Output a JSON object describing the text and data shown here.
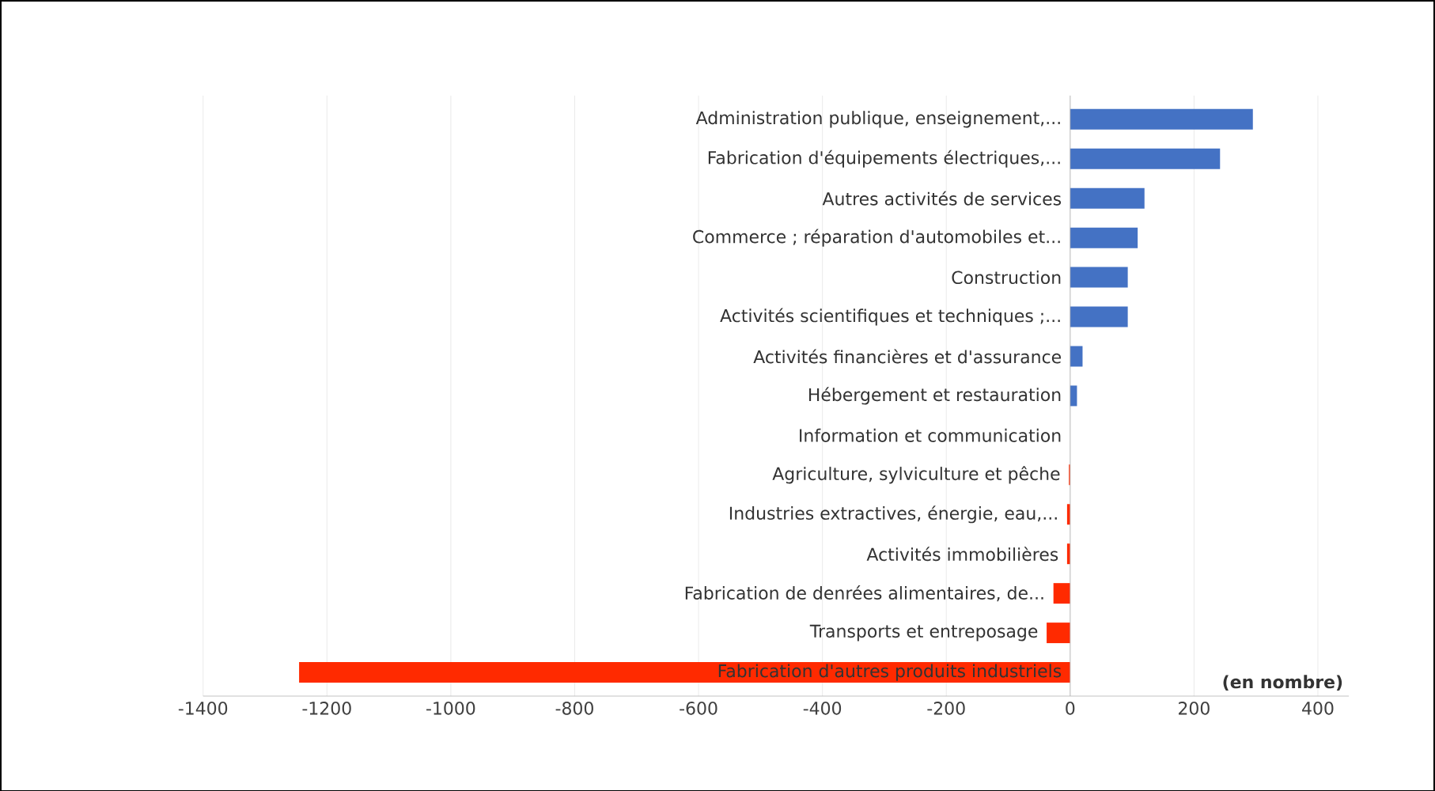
{
  "chart_data": {
    "type": "bar",
    "orientation": "horizontal",
    "categories": [
      "Administration publique, enseignement,...",
      "Fabrication d'équipements électriques,...",
      "Autres activités de services",
      "Commerce ; réparation d'automobiles et...",
      "Construction",
      "Activités scientifiques et techniques ;...",
      "Activités financières et d'assurance",
      "Hébergement et restauration",
      "Information et communication",
      "Agriculture, sylviculture et pêche",
      "Industries extractives,  énergie, eau,...",
      "Activités immobilières",
      "Fabrication de denrées alimentaires, de...",
      "Transports et entreposage",
      "Fabrication d'autres produits industriels"
    ],
    "values": [
      295,
      242,
      120,
      109,
      93,
      93,
      20,
      11,
      0,
      -2,
      -5,
      -5,
      -27,
      -38,
      -1245
    ],
    "colors": [
      "#4472c4",
      "#4472c4",
      "#4472c4",
      "#4472c4",
      "#4472c4",
      "#4472c4",
      "#4472c4",
      "#4472c4",
      "#4472c4",
      "#ff2a00",
      "#ff2a00",
      "#ff2a00",
      "#ff2a00",
      "#ff2a00",
      "#ff2a00"
    ],
    "xlim": [
      -1400,
      450
    ],
    "xticks": [
      -1400,
      -1200,
      -1000,
      -800,
      -600,
      -400,
      -200,
      0,
      200,
      400
    ],
    "grid": "x",
    "annotations": [
      "(en nombre)"
    ]
  }
}
